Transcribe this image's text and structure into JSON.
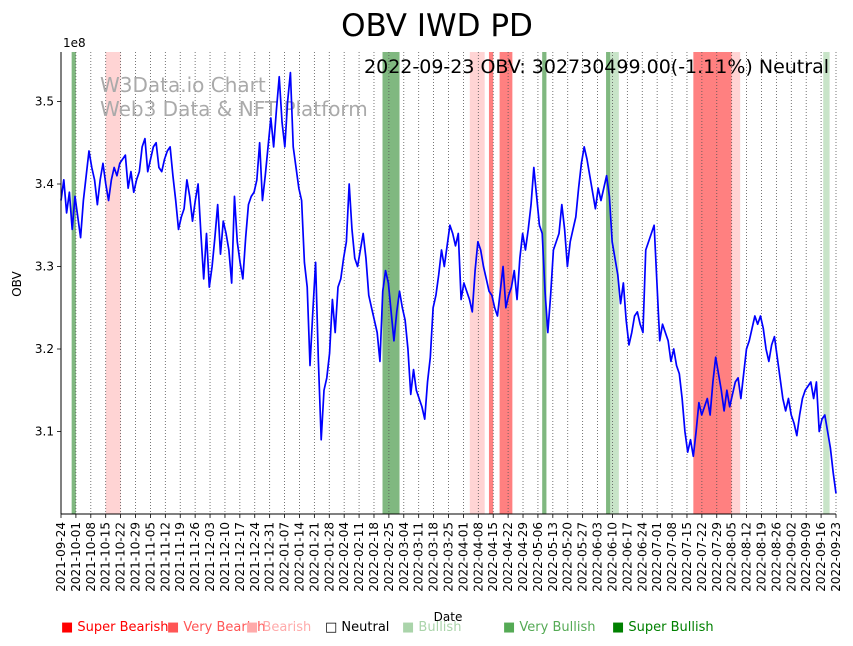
{
  "chart_data": {
    "type": "line",
    "title": "OBV IWD PD",
    "annotation": "2022-09-23 OBV: 302730499.00(-1.11%) Neutral",
    "watermark": [
      "W3Data.io Chart",
      "Web3 Data & NFT Platform"
    ],
    "xlabel": "Date",
    "ylabel": "OBV",
    "y_multiplier_label": "1e8",
    "x_range": [
      "2021-09-24",
      "2022-09-23"
    ],
    "ylim": [
      3.0,
      3.56
    ],
    "y_ticks": [
      3.1,
      3.2,
      3.3,
      3.4,
      3.5
    ],
    "y_tick_labels": [
      "3.1",
      "3.2",
      "3.3",
      "3.4",
      "3.5"
    ],
    "x_ticks": [
      "2021-09-24",
      "2021-10-01",
      "2021-10-08",
      "2021-10-15",
      "2021-10-22",
      "2021-10-29",
      "2021-11-05",
      "2021-11-12",
      "2021-11-19",
      "2021-11-26",
      "2021-12-03",
      "2021-12-10",
      "2021-12-17",
      "2021-12-24",
      "2021-12-31",
      "2022-01-07",
      "2022-01-14",
      "2022-01-21",
      "2022-01-28",
      "2022-02-04",
      "2022-02-11",
      "2022-02-18",
      "2022-02-25",
      "2022-03-04",
      "2022-03-11",
      "2022-03-18",
      "2022-03-25",
      "2022-04-01",
      "2022-04-08",
      "2022-04-15",
      "2022-04-22",
      "2022-04-29",
      "2022-05-06",
      "2022-05-13",
      "2022-05-20",
      "2022-05-27",
      "2022-06-03",
      "2022-06-10",
      "2022-06-17",
      "2022-06-24",
      "2022-07-01",
      "2022-07-08",
      "2022-07-15",
      "2022-07-22",
      "2022-07-29",
      "2022-08-05",
      "2022-08-12",
      "2022-08-19",
      "2022-08-26",
      "2022-09-02",
      "2022-09-09",
      "2022-09-16",
      "2022-09-23"
    ],
    "series": [
      {
        "values": [
          3.38,
          3.405,
          3.365,
          3.39,
          3.345,
          3.385,
          3.36,
          3.335,
          3.38,
          3.41,
          3.44,
          3.42,
          3.405,
          3.375,
          3.405,
          3.425,
          3.4,
          3.38,
          3.405,
          3.42,
          3.41,
          3.425,
          3.43,
          3.435,
          3.395,
          3.415,
          3.39,
          3.405,
          3.415,
          3.445,
          3.455,
          3.415,
          3.43,
          3.445,
          3.45,
          3.42,
          3.415,
          3.43,
          3.44,
          3.445,
          3.41,
          3.38,
          3.345,
          3.36,
          3.37,
          3.405,
          3.385,
          3.355,
          3.38,
          3.4,
          3.34,
          3.285,
          3.34,
          3.275,
          3.3,
          3.335,
          3.375,
          3.315,
          3.355,
          3.34,
          3.32,
          3.28,
          3.385,
          3.33,
          3.305,
          3.285,
          3.335,
          3.375,
          3.385,
          3.39,
          3.405,
          3.45,
          3.38,
          3.41,
          3.445,
          3.48,
          3.445,
          3.49,
          3.53,
          3.475,
          3.445,
          3.5,
          3.535,
          3.445,
          3.42,
          3.395,
          3.38,
          3.305,
          3.275,
          3.18,
          3.245,
          3.305,
          3.185,
          3.09,
          3.15,
          3.165,
          3.195,
          3.26,
          3.22,
          3.275,
          3.285,
          3.31,
          3.33,
          3.4,
          3.345,
          3.31,
          3.3,
          3.32,
          3.34,
          3.31,
          3.265,
          3.25,
          3.235,
          3.22,
          3.185,
          3.27,
          3.295,
          3.28,
          3.245,
          3.21,
          3.245,
          3.27,
          3.25,
          3.235,
          3.2,
          3.145,
          3.175,
          3.15,
          3.14,
          3.13,
          3.115,
          3.16,
          3.19,
          3.25,
          3.265,
          3.29,
          3.32,
          3.3,
          3.325,
          3.35,
          3.34,
          3.325,
          3.34,
          3.26,
          3.28,
          3.27,
          3.26,
          3.245,
          3.295,
          3.33,
          3.32,
          3.3,
          3.285,
          3.27,
          3.265,
          3.25,
          3.24,
          3.27,
          3.3,
          3.25,
          3.265,
          3.275,
          3.295,
          3.26,
          3.31,
          3.34,
          3.32,
          3.345,
          3.375,
          3.42,
          3.385,
          3.35,
          3.34,
          3.27,
          3.22,
          3.265,
          3.32,
          3.33,
          3.34,
          3.375,
          3.345,
          3.3,
          3.33,
          3.345,
          3.36,
          3.395,
          3.425,
          3.445,
          3.43,
          3.41,
          3.39,
          3.37,
          3.395,
          3.38,
          3.395,
          3.41,
          3.385,
          3.33,
          3.31,
          3.29,
          3.255,
          3.28,
          3.235,
          3.205,
          3.22,
          3.24,
          3.245,
          3.23,
          3.22,
          3.32,
          3.33,
          3.34,
          3.35,
          3.28,
          3.21,
          3.23,
          3.22,
          3.21,
          3.185,
          3.2,
          3.18,
          3.17,
          3.14,
          3.1,
          3.075,
          3.09,
          3.07,
          3.1,
          3.135,
          3.12,
          3.13,
          3.14,
          3.12,
          3.16,
          3.19,
          3.17,
          3.15,
          3.125,
          3.15,
          3.13,
          3.145,
          3.16,
          3.165,
          3.14,
          3.17,
          3.2,
          3.21,
          3.225,
          3.24,
          3.23,
          3.24,
          3.225,
          3.2,
          3.185,
          3.205,
          3.215,
          3.19,
          3.165,
          3.14,
          3.125,
          3.14,
          3.12,
          3.11,
          3.095,
          3.12,
          3.14,
          3.15,
          3.155,
          3.16,
          3.14,
          3.16,
          3.1,
          3.115,
          3.12,
          3.1,
          3.08,
          3.05,
          3.025
        ]
      }
    ],
    "bands": [
      {
        "start": "2021-09-29",
        "end": "2021-10-01",
        "type": "Very Bullish"
      },
      {
        "start": "2021-10-15",
        "end": "2021-10-22",
        "type": "Bearish"
      },
      {
        "start": "2022-02-22",
        "end": "2022-03-02",
        "type": "Very Bullish"
      },
      {
        "start": "2022-04-04",
        "end": "2022-04-11",
        "type": "Bearish"
      },
      {
        "start": "2022-04-13",
        "end": "2022-04-15",
        "type": "Very Bearish"
      },
      {
        "start": "2022-04-18",
        "end": "2022-04-24",
        "type": "Very Bearish"
      },
      {
        "start": "2022-05-08",
        "end": "2022-05-10",
        "type": "Very Bullish"
      },
      {
        "start": "2022-06-07",
        "end": "2022-06-09",
        "type": "Very Bullish"
      },
      {
        "start": "2022-06-09",
        "end": "2022-06-13",
        "type": "Bullish"
      },
      {
        "start": "2022-07-18",
        "end": "2022-08-05",
        "type": "Very Bearish"
      },
      {
        "start": "2022-08-05",
        "end": "2022-08-09",
        "type": "Bearish"
      },
      {
        "start": "2022-09-17",
        "end": "2022-09-20",
        "type": "Bullish"
      }
    ],
    "grid": "vertical dotted",
    "legend_position": "bottom"
  },
  "legend": [
    {
      "symbol": "■",
      "label": "Super Bearish",
      "color": "#ff0000"
    },
    {
      "symbol": "■",
      "label": "Very Bearish",
      "color": "#ff5555"
    },
    {
      "symbol": "■",
      "label": "Bearish",
      "color": "#ffaaaa"
    },
    {
      "symbol": "□",
      "label": "Neutral",
      "color": "#000000"
    },
    {
      "symbol": "■",
      "label": "Bullish",
      "color": "#aad4aa"
    },
    {
      "symbol": "■",
      "label": "Very Bullish",
      "color": "#55aa55"
    },
    {
      "symbol": "■",
      "label": "Super Bullish",
      "color": "#008000"
    }
  ],
  "colors": {
    "line": "#0000ff",
    "Very Bearish": "#ff8080",
    "Bearish": "#ffd4d4",
    "Very Bullish": "#80b880",
    "Bullish": "#c8e4c8",
    "watermark": "#aaaaaa"
  }
}
